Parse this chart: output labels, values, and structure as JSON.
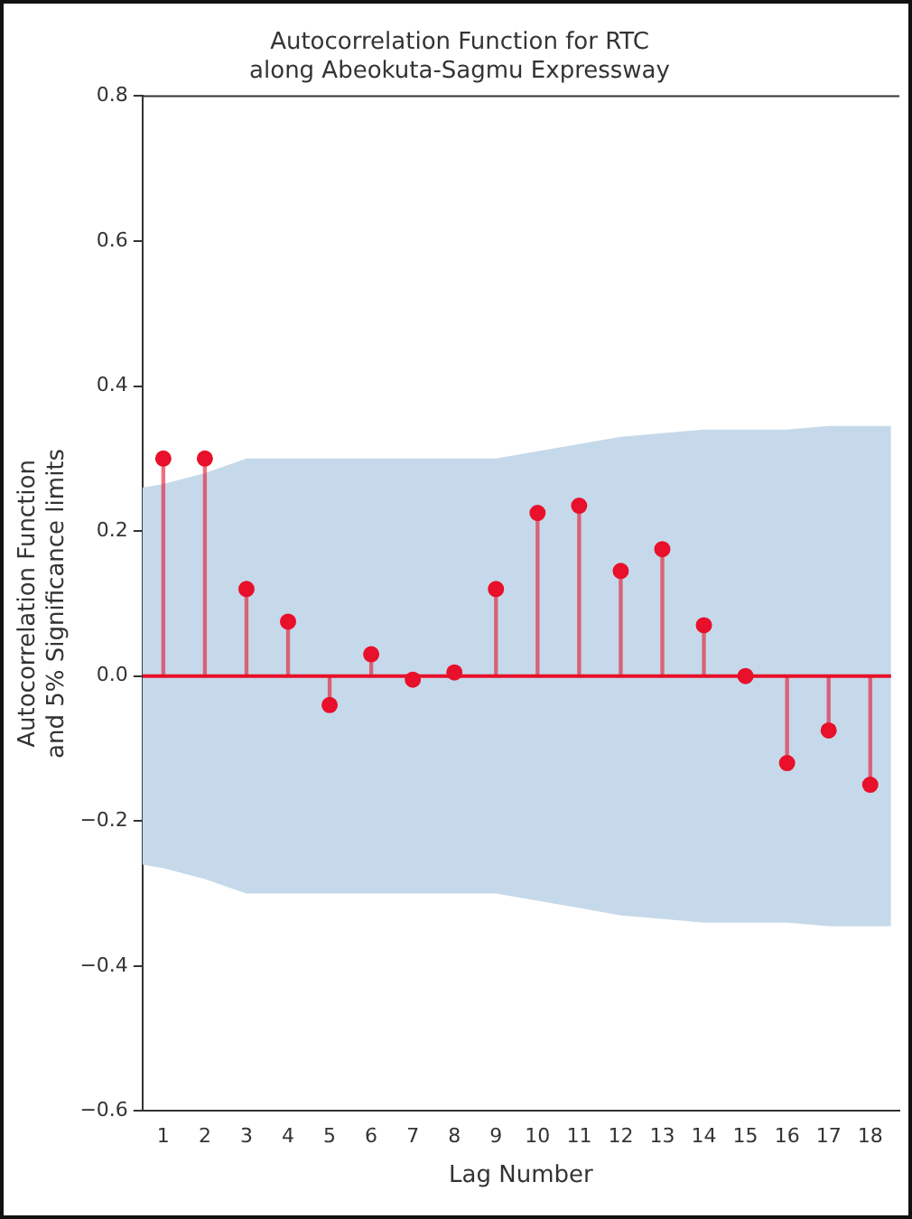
{
  "chart_data": {
    "type": "lollipop",
    "title": "Autocorrelation Function for RTC\nalong Abeokuta-Sagmu Expressway",
    "xlabel": "Lag Number",
    "ylabel": "Autocorrelation Function\nand 5% Significance limits",
    "x": [
      1,
      2,
      3,
      4,
      5,
      6,
      7,
      8,
      9,
      10,
      11,
      12,
      13,
      14,
      15,
      16,
      17,
      18
    ],
    "xlim": [
      0.5,
      18.7
    ],
    "xticks": [
      1,
      2,
      3,
      4,
      5,
      6,
      7,
      8,
      9,
      10,
      11,
      12,
      13,
      14,
      15,
      16,
      17,
      18
    ],
    "ylim": [
      -0.6,
      0.8
    ],
    "yticks": [
      {
        "value": -0.6,
        "label": "−0.6"
      },
      {
        "value": -0.4,
        "label": "−0.4"
      },
      {
        "value": -0.2,
        "label": "−0.2"
      },
      {
        "value": 0,
        "label": "0.0"
      },
      {
        "value": 0.2,
        "label": "0.2"
      },
      {
        "value": 0.4,
        "label": "0.4"
      },
      {
        "value": 0.6,
        "label": "0.6"
      },
      {
        "value": 0.8,
        "label": "0.8"
      }
    ],
    "series": [
      {
        "color": "#e8102a",
        "marker": "circle",
        "values": [
          0.3,
          0.3,
          0.12,
          0.075,
          -0.04,
          0.03,
          -0.005,
          0.005,
          0.12,
          0.225,
          0.235,
          0.145,
          0.175,
          0.07,
          0,
          -0.12,
          -0.075,
          -0.15
        ]
      },
      {
        "type": "line",
        "color": "#e8102a",
        "x": [
          0.5,
          1,
          2,
          3,
          4,
          5,
          6,
          7,
          8,
          9,
          10,
          11,
          12,
          13,
          14,
          15,
          16,
          17,
          18,
          18.5
        ],
        "values": [
          0,
          0,
          0,
          0,
          0,
          0,
          0,
          0,
          0,
          0,
          0,
          0,
          0,
          0,
          0,
          0,
          0,
          0,
          0,
          0
        ],
        "upper": [
          0.26,
          0.265,
          0.28,
          0.3,
          0.3,
          0.3,
          0.3,
          0.3,
          0.3,
          0.3,
          0.31,
          0.32,
          0.33,
          0.335,
          0.34,
          0.34,
          0.34,
          0.345,
          0.345,
          0.345
        ],
        "lower": [
          -0.26,
          -0.265,
          -0.28,
          -0.3,
          -0.3,
          -0.3,
          -0.3,
          -0.3,
          -0.3,
          -0.3,
          -0.31,
          -0.32,
          -0.33,
          -0.335,
          -0.34,
          -0.34,
          -0.34,
          -0.345,
          -0.345,
          -0.345
        ]
      }
    ],
    "grid": false,
    "legend": false
  }
}
